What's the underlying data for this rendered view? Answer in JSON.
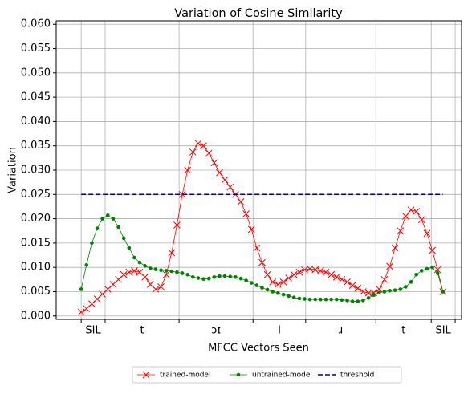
{
  "chart_data": {
    "type": "line",
    "title": "Variation of Cosine Similarity",
    "xlabel": "MFCC Vectors Seen",
    "ylabel": "Variation",
    "xlim": [
      -4.7,
      71.5
    ],
    "xticks": [
      0,
      4.5,
      18.4,
      32.3,
      42.2,
      55.4,
      65.8,
      70.3
    ],
    "phonemes": [
      "SIL",
      "t",
      "ɔɪ",
      "l",
      "ɹ",
      "t",
      "SIL"
    ],
    "ylim": [
      -0.0007,
      0.0607
    ],
    "yticks": [
      {
        "value": 0,
        "label": "0.000"
      },
      {
        "value": 0.005,
        "label": "0.005"
      },
      {
        "value": 0.01,
        "label": "0.010"
      },
      {
        "value": 0.015,
        "label": "0.015"
      },
      {
        "value": 0.02,
        "label": "0.020"
      },
      {
        "value": 0.025,
        "label": "0.025"
      },
      {
        "value": 0.03,
        "label": "0.030"
      },
      {
        "value": 0.035,
        "label": "0.035"
      },
      {
        "value": 0.04,
        "label": "0.040"
      },
      {
        "value": 0.045,
        "label": "0.045"
      },
      {
        "value": 0.05,
        "label": "0.050"
      },
      {
        "value": 0.055,
        "label": "0.055"
      },
      {
        "value": 0.06,
        "label": "0.060"
      }
    ],
    "grid": true,
    "legend": "bottom",
    "series": [
      {
        "name": "trained-model",
        "color": "#ff0000",
        "marker": "x",
        "values": [
          0.0008,
          0.0015,
          0.0025,
          0.0035,
          0.0045,
          0.0055,
          0.0065,
          0.0075,
          0.0085,
          0.009,
          0.0093,
          0.009,
          0.008,
          0.0065,
          0.0055,
          0.006,
          0.0085,
          0.013,
          0.0187,
          0.025,
          0.03,
          0.0337,
          0.0355,
          0.035,
          0.0335,
          0.0315,
          0.0295,
          0.028,
          0.0265,
          0.025,
          0.0235,
          0.021,
          0.0178,
          0.014,
          0.011,
          0.0085,
          0.007,
          0.0065,
          0.007,
          0.0078,
          0.0085,
          0.009,
          0.0095,
          0.0097,
          0.0095,
          0.0093,
          0.009,
          0.0085,
          0.008,
          0.0075,
          0.007,
          0.0063,
          0.0057,
          0.005,
          0.0047,
          0.0048,
          0.0055,
          0.0075,
          0.0102,
          0.014,
          0.0175,
          0.0205,
          0.0218,
          0.0215,
          0.0198,
          0.017,
          0.0135,
          0.0095,
          0.005
        ]
      },
      {
        "name": "untrained-model",
        "color": "#008000",
        "marker": "o",
        "values": [
          0.0055,
          0.0105,
          0.015,
          0.018,
          0.02,
          0.0207,
          0.02,
          0.0183,
          0.016,
          0.014,
          0.012,
          0.011,
          0.0103,
          0.0098,
          0.0096,
          0.0094,
          0.0093,
          0.0092,
          0.009,
          0.0088,
          0.0085,
          0.008,
          0.0078,
          0.0076,
          0.0077,
          0.008,
          0.0082,
          0.0082,
          0.0081,
          0.008,
          0.0077,
          0.0073,
          0.0068,
          0.0063,
          0.0058,
          0.0054,
          0.005,
          0.0047,
          0.0044,
          0.0041,
          0.0038,
          0.0036,
          0.0035,
          0.0034,
          0.0034,
          0.0034,
          0.0034,
          0.0034,
          0.0034,
          0.0033,
          0.0032,
          0.003,
          0.003,
          0.0032,
          0.0037,
          0.0043,
          0.0048,
          0.005,
          0.0052,
          0.0053,
          0.0055,
          0.006,
          0.007,
          0.0085,
          0.0093,
          0.0097,
          0.01,
          0.0088,
          0.005
        ]
      },
      {
        "name": "threshold",
        "color": "#000080",
        "dashed": true,
        "x": [
          0,
          68
        ],
        "values": [
          0.025,
          0.025
        ]
      }
    ]
  }
}
